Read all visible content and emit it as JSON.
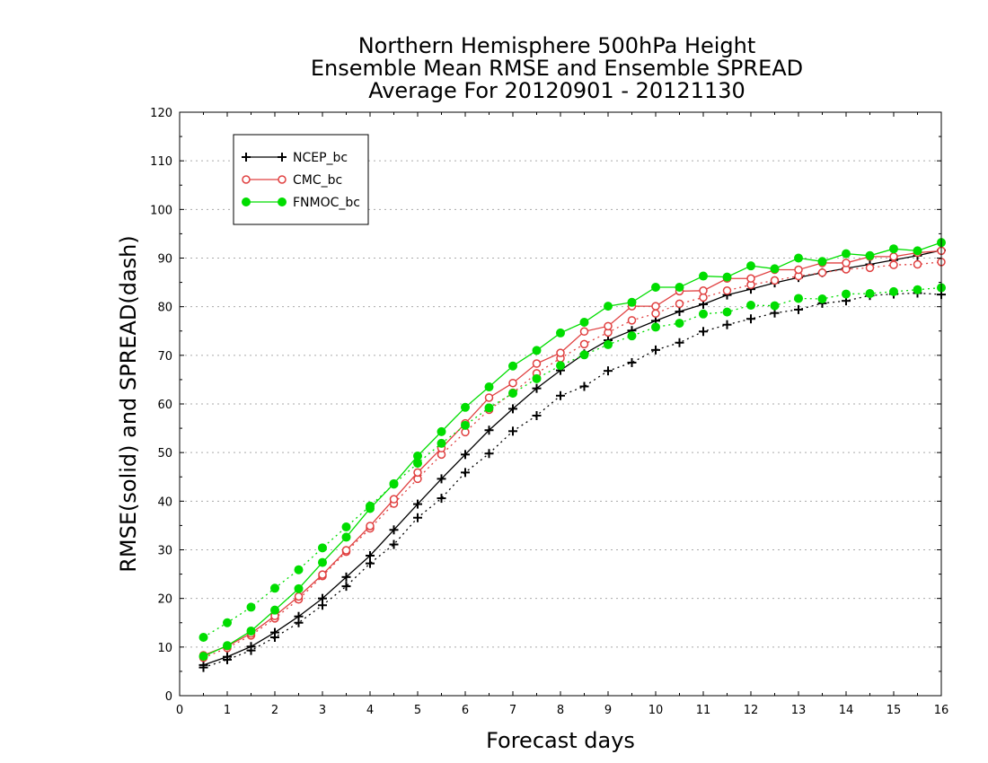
{
  "chart_data": {
    "type": "line",
    "title": [
      "Northern Hemisphere 500hPa Height",
      "Ensemble Mean RMSE and Ensemble SPREAD",
      "Average For 20120901 - 20121130"
    ],
    "xlabel": "Forecast days",
    "ylabel": "RMSE(solid) and SPREAD(dash)",
    "xlim": [
      0,
      16
    ],
    "ylim": [
      0,
      120
    ],
    "xticks": [
      0,
      1,
      2,
      3,
      4,
      5,
      6,
      7,
      8,
      9,
      10,
      11,
      12,
      13,
      14,
      15,
      16
    ],
    "yticks": [
      0,
      10,
      20,
      30,
      40,
      50,
      60,
      70,
      80,
      90,
      100,
      110,
      120
    ],
    "grid": true,
    "legend_position": "top-left",
    "x": [
      0.5,
      1,
      1.5,
      2,
      2.5,
      3,
      3.5,
      4,
      4.5,
      5,
      5.5,
      6,
      6.5,
      7,
      7.5,
      8,
      8.5,
      9,
      9.5,
      10,
      10.5,
      11,
      11.5,
      12,
      12.5,
      13,
      13.5,
      14,
      14.5,
      15,
      15.5,
      16
    ],
    "series": [
      {
        "name": "NCEP_bc",
        "color": "#000000",
        "marker": "plus",
        "rmse": [
          6.3,
          8.0,
          10.1,
          13.0,
          16.3,
          20.0,
          24.4,
          28.8,
          34.1,
          39.4,
          44.6,
          49.6,
          54.6,
          59.0,
          63.2,
          66.9,
          70.3,
          73.1,
          75.1,
          77.1,
          79.0,
          80.5,
          82.4,
          83.6,
          84.9,
          86.0,
          87.0,
          87.9,
          88.7,
          89.6,
          90.5,
          91.6
        ],
        "spread": [
          5.8,
          7.4,
          9.3,
          12.0,
          15.0,
          18.6,
          22.5,
          27.2,
          31.1,
          36.6,
          40.6,
          45.9,
          49.8,
          54.4,
          57.6,
          61.7,
          63.6,
          66.8,
          68.5,
          71.1,
          72.6,
          74.9,
          76.3,
          77.5,
          78.7,
          79.4,
          80.7,
          81.2,
          82.3,
          82.6,
          82.8,
          82.5
        ]
      },
      {
        "name": "CMC_bc",
        "color": "#e04040",
        "marker": "circle-open",
        "rmse": [
          8.3,
          10.2,
          12.8,
          16.4,
          20.4,
          24.9,
          29.9,
          34.9,
          40.4,
          45.9,
          50.9,
          56.0,
          61.3,
          64.3,
          68.3,
          70.5,
          74.9,
          76.0,
          80.1,
          80.1,
          83.2,
          83.3,
          85.8,
          85.8,
          87.6,
          87.6,
          89.0,
          89.0,
          90.3,
          90.3,
          91.1,
          91.5
        ],
        "spread": [
          7.8,
          9.8,
          12.4,
          15.9,
          19.8,
          24.6,
          29.6,
          34.4,
          39.5,
          44.6,
          49.6,
          54.2,
          58.8,
          62.3,
          66.3,
          69.4,
          72.3,
          74.7,
          77.2,
          78.6,
          80.6,
          81.9,
          83.3,
          84.5,
          85.4,
          86.3,
          87.0,
          87.7,
          88.0,
          88.6,
          88.7,
          89.2
        ]
      },
      {
        "name": "FNMOC_bc",
        "color": "#00dd00",
        "marker": "circle-filled",
        "rmse": [
          8.1,
          10.3,
          13.3,
          17.6,
          22.0,
          27.4,
          32.6,
          38.5,
          43.6,
          49.3,
          54.3,
          59.3,
          63.5,
          67.8,
          71.0,
          74.6,
          76.8,
          80.1,
          80.9,
          84.0,
          84.0,
          86.3,
          86.1,
          88.4,
          87.8,
          90.0,
          89.3,
          90.9,
          90.5,
          91.9,
          91.5,
          93.2
        ],
        "spread": [
          12.0,
          15.0,
          18.2,
          22.1,
          25.9,
          30.4,
          34.7,
          39.0,
          43.5,
          47.8,
          51.9,
          55.6,
          59.2,
          62.2,
          65.2,
          67.9,
          70.1,
          72.2,
          74.0,
          75.8,
          76.6,
          78.5,
          78.9,
          80.3,
          80.2,
          81.7,
          81.6,
          82.6,
          82.7,
          83.1,
          83.5,
          83.9
        ]
      }
    ]
  }
}
